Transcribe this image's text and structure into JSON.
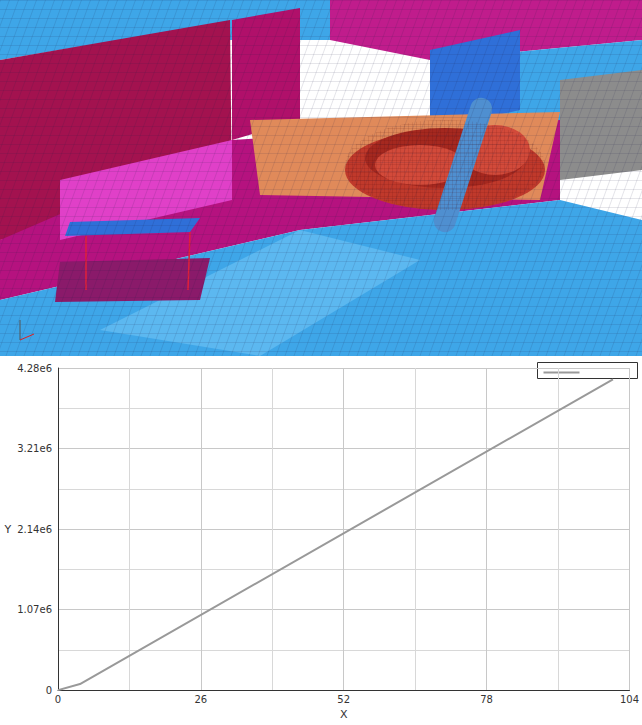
{
  "chart_data": {
    "type": "line",
    "x": [
      0,
      4,
      101
    ],
    "values": [
      0,
      80000,
      4130000
    ],
    "color": "#999999",
    "xlabel": "X",
    "ylabel": "Y",
    "xlim": [
      0,
      104
    ],
    "xticks": [
      0,
      26,
      52,
      78,
      104
    ],
    "ylim": [
      0,
      4280000
    ],
    "yticks": [
      0,
      {
        "value": 1070000,
        "label": "1.07e6"
      },
      {
        "value": 2140000,
        "label": "2.14e6"
      },
      {
        "value": 3210000,
        "label": "3.21e6"
      },
      {
        "value": 4280000,
        "label": "4.28e6"
      }
    ],
    "grid": true
  }
}
